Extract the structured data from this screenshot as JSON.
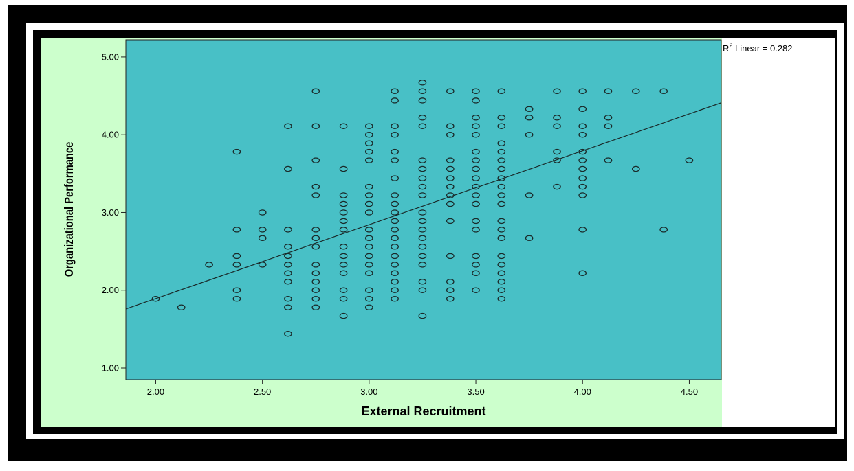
{
  "colors": {
    "frame": "#000000",
    "background": "#ccffcc",
    "plot_area": "#48c0c6",
    "marker": "#1a2a2a",
    "fit_line": "#1a2a2a",
    "page": "#ffffff"
  },
  "chart_data": {
    "type": "scatter",
    "title": "",
    "xlabel": "External Recruitment",
    "ylabel": "Organizational Performance",
    "xlim": [
      1.86,
      4.65
    ],
    "ylim": [
      0.85,
      5.22
    ],
    "xticks": [
      "2.00",
      "2.50",
      "3.00",
      "3.50",
      "4.00",
      "4.50"
    ],
    "yticks": [
      "1.00",
      "2.00",
      "3.00",
      "4.00",
      "5.00"
    ],
    "grid": false,
    "annotation": {
      "base": "R",
      "sup": "2",
      "text": " Linear = 0.282"
    },
    "fit_line": {
      "x": [
        1.86,
        4.65
      ],
      "y": [
        1.76,
        4.41
      ]
    },
    "points": [
      {
        "x": 2.0,
        "y": 1.89
      },
      {
        "x": 2.12,
        "y": 1.78
      },
      {
        "x": 2.25,
        "y": 2.33
      },
      {
        "x": 2.38,
        "y": 3.78
      },
      {
        "x": 2.38,
        "y": 2.78
      },
      {
        "x": 2.38,
        "y": 2.44
      },
      {
        "x": 2.38,
        "y": 2.33
      },
      {
        "x": 2.38,
        "y": 2.0
      },
      {
        "x": 2.38,
        "y": 1.89
      },
      {
        "x": 2.5,
        "y": 3.0
      },
      {
        "x": 2.5,
        "y": 2.78
      },
      {
        "x": 2.5,
        "y": 2.67
      },
      {
        "x": 2.5,
        "y": 2.33
      },
      {
        "x": 2.62,
        "y": 4.11
      },
      {
        "x": 2.62,
        "y": 3.56
      },
      {
        "x": 2.62,
        "y": 2.78
      },
      {
        "x": 2.62,
        "y": 2.56
      },
      {
        "x": 2.62,
        "y": 2.44
      },
      {
        "x": 2.62,
        "y": 2.33
      },
      {
        "x": 2.62,
        "y": 2.22
      },
      {
        "x": 2.62,
        "y": 2.11
      },
      {
        "x": 2.62,
        "y": 1.89
      },
      {
        "x": 2.62,
        "y": 1.78
      },
      {
        "x": 2.62,
        "y": 1.44
      },
      {
        "x": 2.75,
        "y": 4.56
      },
      {
        "x": 2.75,
        "y": 4.11
      },
      {
        "x": 2.75,
        "y": 3.67
      },
      {
        "x": 2.75,
        "y": 3.33
      },
      {
        "x": 2.75,
        "y": 3.22
      },
      {
        "x": 2.75,
        "y": 2.78
      },
      {
        "x": 2.75,
        "y": 2.67
      },
      {
        "x": 2.75,
        "y": 2.56
      },
      {
        "x": 2.75,
        "y": 2.33
      },
      {
        "x": 2.75,
        "y": 2.22
      },
      {
        "x": 2.75,
        "y": 2.11
      },
      {
        "x": 2.75,
        "y": 2.0
      },
      {
        "x": 2.75,
        "y": 1.89
      },
      {
        "x": 2.75,
        "y": 1.78
      },
      {
        "x": 2.88,
        "y": 4.11
      },
      {
        "x": 2.88,
        "y": 3.56
      },
      {
        "x": 2.88,
        "y": 3.22
      },
      {
        "x": 2.88,
        "y": 3.11
      },
      {
        "x": 2.88,
        "y": 3.0
      },
      {
        "x": 2.88,
        "y": 2.89
      },
      {
        "x": 2.88,
        "y": 2.78
      },
      {
        "x": 2.88,
        "y": 2.56
      },
      {
        "x": 2.88,
        "y": 2.44
      },
      {
        "x": 2.88,
        "y": 2.33
      },
      {
        "x": 2.88,
        "y": 2.22
      },
      {
        "x": 2.88,
        "y": 2.0
      },
      {
        "x": 2.88,
        "y": 1.89
      },
      {
        "x": 2.88,
        "y": 1.67
      },
      {
        "x": 3.0,
        "y": 4.11
      },
      {
        "x": 3.0,
        "y": 4.0
      },
      {
        "x": 3.0,
        "y": 3.89
      },
      {
        "x": 3.0,
        "y": 3.78
      },
      {
        "x": 3.0,
        "y": 3.67
      },
      {
        "x": 3.0,
        "y": 3.33
      },
      {
        "x": 3.0,
        "y": 3.22
      },
      {
        "x": 3.0,
        "y": 3.11
      },
      {
        "x": 3.0,
        "y": 3.0
      },
      {
        "x": 3.0,
        "y": 2.78
      },
      {
        "x": 3.0,
        "y": 2.67
      },
      {
        "x": 3.0,
        "y": 2.56
      },
      {
        "x": 3.0,
        "y": 2.44
      },
      {
        "x": 3.0,
        "y": 2.33
      },
      {
        "x": 3.0,
        "y": 2.22
      },
      {
        "x": 3.0,
        "y": 2.0
      },
      {
        "x": 3.0,
        "y": 1.89
      },
      {
        "x": 3.0,
        "y": 1.78
      },
      {
        "x": 3.12,
        "y": 4.56
      },
      {
        "x": 3.12,
        "y": 4.44
      },
      {
        "x": 3.12,
        "y": 4.11
      },
      {
        "x": 3.12,
        "y": 4.0
      },
      {
        "x": 3.12,
        "y": 3.78
      },
      {
        "x": 3.12,
        "y": 3.67
      },
      {
        "x": 3.12,
        "y": 3.44
      },
      {
        "x": 3.12,
        "y": 3.22
      },
      {
        "x": 3.12,
        "y": 3.11
      },
      {
        "x": 3.12,
        "y": 3.0
      },
      {
        "x": 3.12,
        "y": 2.89
      },
      {
        "x": 3.12,
        "y": 2.78
      },
      {
        "x": 3.12,
        "y": 2.67
      },
      {
        "x": 3.12,
        "y": 2.56
      },
      {
        "x": 3.12,
        "y": 2.44
      },
      {
        "x": 3.12,
        "y": 2.33
      },
      {
        "x": 3.12,
        "y": 2.22
      },
      {
        "x": 3.12,
        "y": 2.11
      },
      {
        "x": 3.12,
        "y": 2.0
      },
      {
        "x": 3.12,
        "y": 1.89
      },
      {
        "x": 3.25,
        "y": 4.67
      },
      {
        "x": 3.25,
        "y": 4.56
      },
      {
        "x": 3.25,
        "y": 4.44
      },
      {
        "x": 3.25,
        "y": 4.22
      },
      {
        "x": 3.25,
        "y": 4.11
      },
      {
        "x": 3.25,
        "y": 3.67
      },
      {
        "x": 3.25,
        "y": 3.56
      },
      {
        "x": 3.25,
        "y": 3.44
      },
      {
        "x": 3.25,
        "y": 3.33
      },
      {
        "x": 3.25,
        "y": 3.22
      },
      {
        "x": 3.25,
        "y": 3.0
      },
      {
        "x": 3.25,
        "y": 2.89
      },
      {
        "x": 3.25,
        "y": 2.78
      },
      {
        "x": 3.25,
        "y": 2.67
      },
      {
        "x": 3.25,
        "y": 2.56
      },
      {
        "x": 3.25,
        "y": 2.44
      },
      {
        "x": 3.25,
        "y": 2.33
      },
      {
        "x": 3.25,
        "y": 2.11
      },
      {
        "x": 3.25,
        "y": 2.0
      },
      {
        "x": 3.25,
        "y": 1.67
      },
      {
        "x": 3.38,
        "y": 4.56
      },
      {
        "x": 3.38,
        "y": 4.11
      },
      {
        "x": 3.38,
        "y": 4.0
      },
      {
        "x": 3.38,
        "y": 3.67
      },
      {
        "x": 3.38,
        "y": 3.56
      },
      {
        "x": 3.38,
        "y": 3.44
      },
      {
        "x": 3.38,
        "y": 3.33
      },
      {
        "x": 3.38,
        "y": 3.22
      },
      {
        "x": 3.38,
        "y": 3.11
      },
      {
        "x": 3.38,
        "y": 2.89
      },
      {
        "x": 3.38,
        "y": 2.44
      },
      {
        "x": 3.38,
        "y": 2.11
      },
      {
        "x": 3.38,
        "y": 2.0
      },
      {
        "x": 3.38,
        "y": 1.89
      },
      {
        "x": 3.5,
        "y": 4.56
      },
      {
        "x": 3.5,
        "y": 4.44
      },
      {
        "x": 3.5,
        "y": 4.22
      },
      {
        "x": 3.5,
        "y": 4.11
      },
      {
        "x": 3.5,
        "y": 4.0
      },
      {
        "x": 3.5,
        "y": 3.78
      },
      {
        "x": 3.5,
        "y": 3.67
      },
      {
        "x": 3.5,
        "y": 3.56
      },
      {
        "x": 3.5,
        "y": 3.44
      },
      {
        "x": 3.5,
        "y": 3.33
      },
      {
        "x": 3.5,
        "y": 3.22
      },
      {
        "x": 3.5,
        "y": 3.11
      },
      {
        "x": 3.5,
        "y": 2.89
      },
      {
        "x": 3.5,
        "y": 2.78
      },
      {
        "x": 3.5,
        "y": 2.44
      },
      {
        "x": 3.5,
        "y": 2.33
      },
      {
        "x": 3.5,
        "y": 2.22
      },
      {
        "x": 3.5,
        "y": 2.0
      },
      {
        "x": 3.62,
        "y": 4.56
      },
      {
        "x": 3.62,
        "y": 4.22
      },
      {
        "x": 3.62,
        "y": 4.11
      },
      {
        "x": 3.62,
        "y": 3.89
      },
      {
        "x": 3.62,
        "y": 3.78
      },
      {
        "x": 3.62,
        "y": 3.67
      },
      {
        "x": 3.62,
        "y": 3.56
      },
      {
        "x": 3.62,
        "y": 3.44
      },
      {
        "x": 3.62,
        "y": 3.33
      },
      {
        "x": 3.62,
        "y": 3.22
      },
      {
        "x": 3.62,
        "y": 3.11
      },
      {
        "x": 3.62,
        "y": 2.89
      },
      {
        "x": 3.62,
        "y": 2.78
      },
      {
        "x": 3.62,
        "y": 2.67
      },
      {
        "x": 3.62,
        "y": 2.44
      },
      {
        "x": 3.62,
        "y": 2.33
      },
      {
        "x": 3.62,
        "y": 2.22
      },
      {
        "x": 3.62,
        "y": 2.11
      },
      {
        "x": 3.62,
        "y": 2.0
      },
      {
        "x": 3.62,
        "y": 1.89
      },
      {
        "x": 3.75,
        "y": 4.33
      },
      {
        "x": 3.75,
        "y": 4.22
      },
      {
        "x": 3.75,
        "y": 4.0
      },
      {
        "x": 3.75,
        "y": 3.22
      },
      {
        "x": 3.75,
        "y": 2.67
      },
      {
        "x": 3.88,
        "y": 4.56
      },
      {
        "x": 3.88,
        "y": 4.22
      },
      {
        "x": 3.88,
        "y": 4.11
      },
      {
        "x": 3.88,
        "y": 3.78
      },
      {
        "x": 3.88,
        "y": 3.67
      },
      {
        "x": 3.88,
        "y": 3.33
      },
      {
        "x": 4.0,
        "y": 4.56
      },
      {
        "x": 4.0,
        "y": 4.33
      },
      {
        "x": 4.0,
        "y": 4.11
      },
      {
        "x": 4.0,
        "y": 4.0
      },
      {
        "x": 4.0,
        "y": 3.78
      },
      {
        "x": 4.0,
        "y": 3.67
      },
      {
        "x": 4.0,
        "y": 3.56
      },
      {
        "x": 4.0,
        "y": 3.44
      },
      {
        "x": 4.0,
        "y": 3.33
      },
      {
        "x": 4.0,
        "y": 3.22
      },
      {
        "x": 4.0,
        "y": 2.78
      },
      {
        "x": 4.0,
        "y": 2.22
      },
      {
        "x": 4.12,
        "y": 4.56
      },
      {
        "x": 4.12,
        "y": 4.22
      },
      {
        "x": 4.12,
        "y": 4.11
      },
      {
        "x": 4.12,
        "y": 3.67
      },
      {
        "x": 4.25,
        "y": 4.56
      },
      {
        "x": 4.25,
        "y": 3.56
      },
      {
        "x": 4.38,
        "y": 4.56
      },
      {
        "x": 4.38,
        "y": 2.78
      },
      {
        "x": 4.5,
        "y": 3.67
      }
    ]
  }
}
